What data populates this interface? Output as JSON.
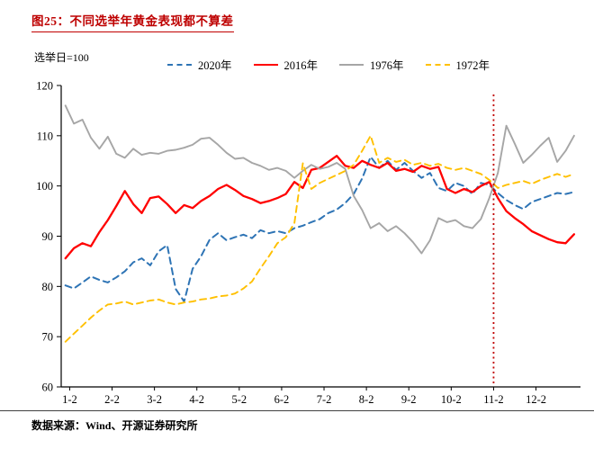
{
  "header": {
    "title": "图25：不同选举年黄金表现都不算差"
  },
  "footer": {
    "source": "数据来源：Wind、开源证券研究所"
  },
  "colors": {
    "accent_red": "#C00000",
    "axis": "#000000"
  },
  "chart_data": {
    "type": "line",
    "title": "图25：不同选举年黄金表现都不算差",
    "note": "选举日=100",
    "xlabel": "",
    "ylabel": "",
    "ylim": [
      60,
      120
    ],
    "yticks": [
      60,
      70,
      80,
      90,
      100,
      110,
      120
    ],
    "xlim": [
      -0.2,
      12.05
    ],
    "xtick_labels": [
      "1-2",
      "2-2",
      "3-2",
      "4-2",
      "5-2",
      "6-2",
      "7-2",
      "8-2",
      "9-2",
      "10-2",
      "11-2",
      "12-2"
    ],
    "xtick_positions": [
      0,
      1,
      2,
      3,
      4,
      5,
      6,
      7,
      8,
      9,
      10,
      11
    ],
    "grid": false,
    "legend_position": "top",
    "event_line": {
      "x": 10,
      "color": "#C00000",
      "style": "dotted"
    },
    "series": [
      {
        "name": "2020年",
        "color": "#2E74B5",
        "dash": "7 5",
        "width": 2,
        "x_start": -0.1,
        "x_step": 0.2,
        "y": [
          80.2,
          79.6,
          80.8,
          82.0,
          81.3,
          80.8,
          81.8,
          83.0,
          84.8,
          85.6,
          84.2,
          87.0,
          88.2,
          79.5,
          77.0,
          83.5,
          86.0,
          89.3,
          90.6,
          89.2,
          89.8,
          90.3,
          89.6,
          91.2,
          90.6,
          91.0,
          90.6,
          91.6,
          92.1,
          92.8,
          93.4,
          94.6,
          95.3,
          96.6,
          98.4,
          101.5,
          105.8,
          103.6,
          105.0,
          103.2,
          104.6,
          103.0,
          101.6,
          102.6,
          99.6,
          99.0,
          100.6,
          100.0,
          98.4,
          100.6,
          100.2,
          98.6,
          97.2,
          96.2,
          95.4,
          96.8,
          97.4,
          98.0,
          98.6,
          98.4,
          98.8
        ]
      },
      {
        "name": "2016年",
        "color": "#FF0000",
        "dash": null,
        "width": 2.3,
        "x_start": -0.1,
        "x_step": 0.2,
        "y": [
          85.6,
          87.6,
          88.6,
          88.0,
          90.8,
          93.2,
          96.0,
          99.0,
          96.4,
          94.6,
          97.6,
          97.9,
          96.4,
          94.6,
          96.2,
          95.6,
          97.0,
          98.0,
          99.4,
          100.2,
          99.2,
          98.0,
          97.4,
          96.6,
          97.0,
          97.6,
          98.4,
          100.8,
          99.6,
          103.2,
          103.6,
          104.8,
          106.0,
          104.0,
          103.6,
          105.0,
          104.2,
          103.6,
          104.6,
          103.0,
          103.4,
          102.8,
          104.0,
          103.4,
          103.8,
          99.4,
          98.6,
          99.4,
          98.8,
          100.0,
          100.8,
          97.6,
          95.0,
          93.6,
          92.4,
          91.0,
          90.2,
          89.4,
          88.8,
          88.6,
          90.4
        ]
      },
      {
        "name": "1976年",
        "color": "#A6A6A6",
        "dash": null,
        "width": 1.9,
        "x_start": -0.1,
        "x_step": 0.2,
        "y": [
          116.0,
          112.4,
          113.2,
          109.6,
          107.4,
          109.8,
          106.4,
          105.6,
          107.4,
          106.2,
          106.6,
          106.4,
          107.0,
          107.2,
          107.6,
          108.2,
          109.4,
          109.6,
          108.2,
          106.6,
          105.4,
          105.6,
          104.6,
          104.0,
          103.2,
          103.6,
          103.0,
          101.6,
          103.0,
          104.2,
          103.4,
          103.8,
          104.6,
          103.4,
          98.0,
          95.2,
          91.6,
          92.6,
          91.0,
          92.0,
          90.6,
          88.8,
          86.6,
          89.2,
          93.6,
          92.8,
          93.2,
          92.0,
          91.6,
          93.4,
          97.6,
          102.6,
          112.0,
          108.4,
          104.6,
          106.2,
          108.0,
          109.6,
          104.8,
          107.0,
          110.0
        ]
      },
      {
        "name": "1972年",
        "color": "#FFC000",
        "dash": "7 5",
        "width": 1.9,
        "x_start": -0.1,
        "x_step": 0.2,
        "y": [
          69.0,
          70.6,
          72.2,
          73.8,
          75.2,
          76.4,
          76.6,
          77.0,
          76.4,
          76.8,
          77.2,
          77.4,
          76.8,
          76.4,
          76.8,
          77.0,
          77.4,
          77.6,
          78.0,
          78.2,
          78.6,
          79.6,
          81.0,
          83.6,
          86.0,
          88.6,
          89.8,
          92.6,
          104.5,
          99.4,
          100.6,
          101.4,
          102.2,
          103.0,
          104.2,
          107.0,
          110.0,
          104.6,
          105.6,
          104.8,
          105.2,
          104.2,
          104.6,
          104.0,
          104.4,
          103.6,
          103.2,
          103.6,
          103.0,
          102.4,
          101.2,
          99.6,
          100.2,
          100.6,
          101.0,
          100.4,
          101.2,
          101.8,
          102.4,
          101.8,
          102.4
        ]
      }
    ]
  }
}
